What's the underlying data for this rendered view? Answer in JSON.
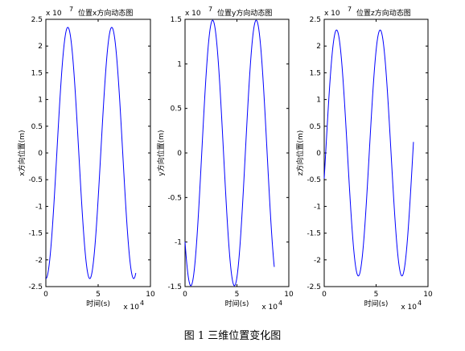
{
  "caption": "图 1  三维位置变化图",
  "chart_data": [
    {
      "type": "line",
      "title": "位置x方向动态图",
      "xlabel": "时间(s)",
      "ylabel": "x方向位置(m)",
      "x_multiplier": "x 10",
      "x_exponent": "4",
      "y_multiplier": "x 10",
      "y_exponent": "7",
      "xlim": [
        0,
        10
      ],
      "ylim": [
        -2.5,
        2.5
      ],
      "xticks": [
        "0",
        "5",
        "10"
      ],
      "yticks": [
        "-2.5",
        "-2",
        "-1.5",
        "-1",
        "-0.5",
        "0",
        "0.5",
        "1",
        "1.5",
        "2",
        "2.5"
      ],
      "grid": false,
      "color": "#0000ff",
      "series": [
        {
          "amplitude": 2.35,
          "period": 4.2,
          "phase_deg": -90,
          "x_start": 0.0,
          "x_end": 8.6
        }
      ]
    },
    {
      "type": "line",
      "title": "位置y方向动态图",
      "xlabel": "时间(s)",
      "ylabel": "y方向位置(m)",
      "x_multiplier": "x 10",
      "x_exponent": "4",
      "y_multiplier": "x 10",
      "y_exponent": "7",
      "xlim": [
        0,
        10
      ],
      "ylim": [
        -1.5,
        1.5
      ],
      "xticks": [
        "0",
        "5",
        "10"
      ],
      "yticks": [
        "-1.5",
        "-1",
        "-0.5",
        "0",
        "0.5",
        "1",
        "1.5"
      ],
      "grid": false,
      "color": "#0000ff",
      "series": [
        {
          "amplitude": 1.49,
          "period": 4.2,
          "phase_deg": 222,
          "x_start": 0.0,
          "x_end": 8.6
        }
      ]
    },
    {
      "type": "line",
      "title": "位置z方向动态图",
      "xlabel": "时间(s)",
      "ylabel": "z方向位置(m)",
      "x_multiplier": "x 10",
      "x_exponent": "4",
      "y_multiplier": "x 10",
      "y_exponent": "7",
      "xlim": [
        0,
        10
      ],
      "ylim": [
        -2.5,
        2.5
      ],
      "xticks": [
        "0",
        "5",
        "10"
      ],
      "yticks": [
        "-2.5",
        "-2",
        "-1.5",
        "-1",
        "-0.5",
        "0",
        "0.5",
        "1",
        "1.5",
        "2",
        "2.5"
      ],
      "grid": false,
      "color": "#0000ff",
      "series": [
        {
          "amplitude": 2.3,
          "period": 4.2,
          "phase_deg": -12,
          "x_start": 0.0,
          "x_end": 8.6
        }
      ]
    }
  ]
}
